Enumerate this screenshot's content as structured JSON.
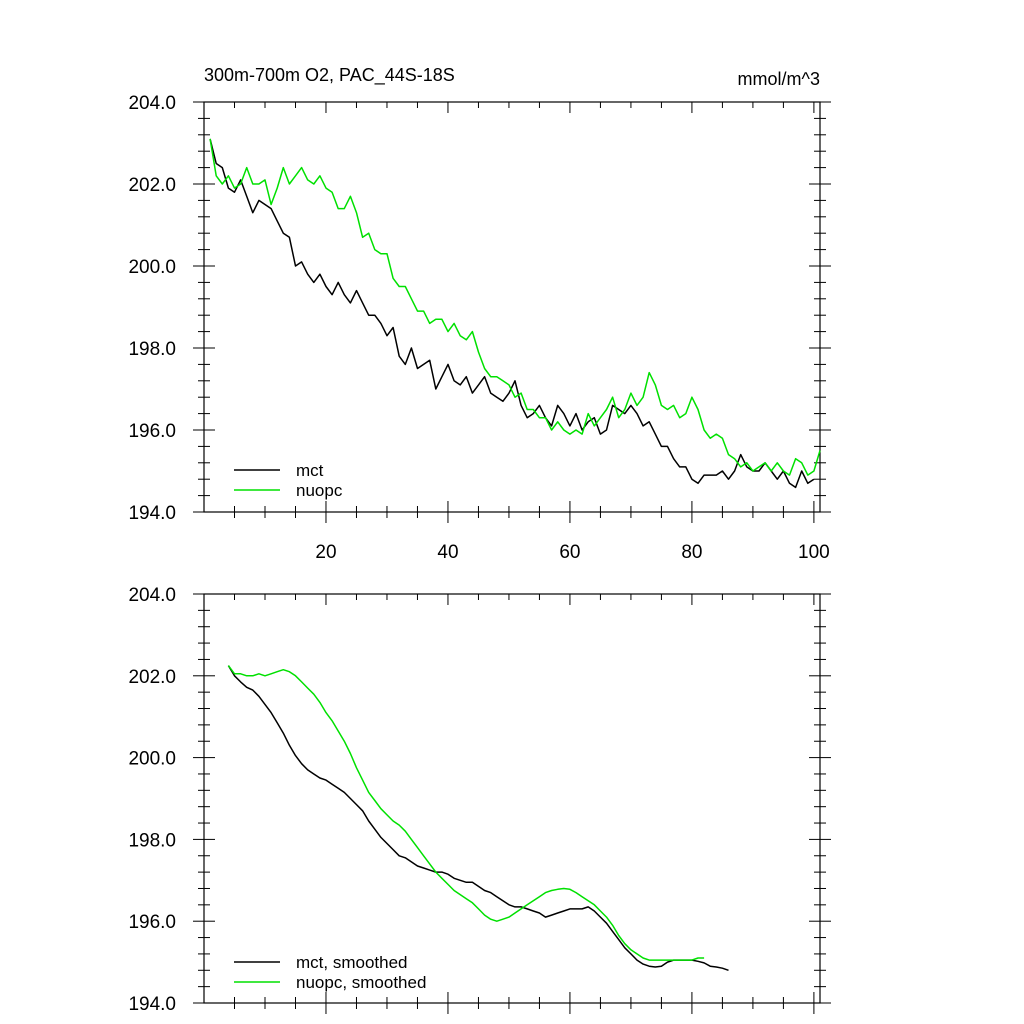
{
  "chart_data": [
    {
      "type": "line",
      "title": "300m-700m O2, PAC_44S-18S",
      "units": "mmol/m^3",
      "xlabel": "",
      "ylabel": "",
      "xlim": [
        0,
        101
      ],
      "ylim": [
        194.0,
        204.0
      ],
      "xticks": [
        20,
        40,
        60,
        80,
        100
      ],
      "yticks": [
        194.0,
        196.0,
        198.0,
        200.0,
        202.0,
        204.0
      ],
      "xtick_labels": [
        "20",
        "40",
        "60",
        "80",
        "100"
      ],
      "ytick_labels": [
        "194.0",
        "196.0",
        "198.0",
        "200.0",
        "202.0",
        "204.0"
      ],
      "legend": "bottom-left",
      "x_start": 1,
      "series": [
        {
          "name": "mct",
          "color": "#000000",
          "values": [
            203.1,
            202.5,
            202.4,
            201.9,
            201.8,
            202.1,
            201.7,
            201.3,
            201.6,
            201.5,
            201.4,
            201.1,
            200.8,
            200.7,
            200.0,
            200.1,
            199.8,
            199.6,
            199.8,
            199.5,
            199.3,
            199.6,
            199.3,
            199.1,
            199.4,
            199.1,
            198.8,
            198.8,
            198.6,
            198.3,
            198.5,
            197.8,
            197.6,
            198.0,
            197.5,
            197.6,
            197.7,
            197.0,
            197.3,
            197.6,
            197.2,
            197.1,
            197.3,
            196.9,
            197.1,
            197.3,
            196.9,
            196.8,
            196.7,
            196.9,
            197.2,
            196.6,
            196.3,
            196.4,
            196.6,
            196.3,
            196.1,
            196.6,
            196.4,
            196.1,
            196.4,
            196.0,
            196.2,
            196.3,
            195.9,
            196.0,
            196.6,
            196.5,
            196.4,
            196.6,
            196.4,
            196.1,
            196.2,
            195.9,
            195.6,
            195.6,
            195.3,
            195.1,
            195.1,
            194.8,
            194.7,
            194.9,
            194.9,
            194.9,
            195.0,
            194.8,
            195.0,
            195.4,
            195.1,
            195.0,
            195.0,
            195.2,
            195.0,
            194.8,
            195.0,
            194.7,
            194.6,
            195.0,
            194.7,
            194.8
          ]
        },
        {
          "name": "nuopc",
          "color": "#00e000",
          "values": [
            203.1,
            202.2,
            202.0,
            202.2,
            201.9,
            202.0,
            202.4,
            202.0,
            202.0,
            202.1,
            201.5,
            201.9,
            202.4,
            202.0,
            202.2,
            202.4,
            202.1,
            202.0,
            202.2,
            201.9,
            201.8,
            201.4,
            201.4,
            201.7,
            201.3,
            200.7,
            200.8,
            200.4,
            200.3,
            200.3,
            199.7,
            199.5,
            199.5,
            199.2,
            198.9,
            198.9,
            198.6,
            198.7,
            198.7,
            198.4,
            198.6,
            198.3,
            198.2,
            198.4,
            197.9,
            197.5,
            197.3,
            197.3,
            197.2,
            197.1,
            196.8,
            196.9,
            196.5,
            196.5,
            196.3,
            196.3,
            196.0,
            196.2,
            196.0,
            195.9,
            196.0,
            195.9,
            196.4,
            196.1,
            196.3,
            196.5,
            196.8,
            196.3,
            196.5,
            196.9,
            196.6,
            196.8,
            197.4,
            197.1,
            196.6,
            196.5,
            196.6,
            196.3,
            196.4,
            196.8,
            196.5,
            196.0,
            195.8,
            195.9,
            195.8,
            195.4,
            195.3,
            195.1,
            195.2,
            195.0,
            195.1,
            195.2,
            195.0,
            195.2,
            195.0,
            194.9,
            195.3,
            195.2,
            194.9,
            195.0,
            195.5
          ]
        }
      ]
    },
    {
      "type": "line",
      "title": "",
      "xlabel": "",
      "ylabel": "",
      "xlim": [
        0,
        101
      ],
      "ylim": [
        194.0,
        204.0
      ],
      "xticks": [
        20,
        40,
        60,
        80,
        100
      ],
      "yticks": [
        194.0,
        196.0,
        198.0,
        200.0,
        202.0,
        204.0
      ],
      "xtick_labels": [],
      "ytick_labels": [
        "194.0",
        "196.0",
        "198.0",
        "200.0",
        "202.0",
        "204.0"
      ],
      "legend": "bottom-left",
      "x_start": 4,
      "series": [
        {
          "name": "mct, smoothed",
          "color": "#000000",
          "values": [
            202.25,
            202.0,
            201.85,
            201.72,
            201.65,
            201.5,
            201.3,
            201.1,
            200.85,
            200.6,
            200.3,
            200.05,
            199.85,
            199.7,
            199.6,
            199.5,
            199.45,
            199.35,
            199.25,
            199.15,
            199.0,
            198.85,
            198.7,
            198.45,
            198.25,
            198.05,
            197.9,
            197.75,
            197.6,
            197.55,
            197.45,
            197.35,
            197.3,
            197.25,
            197.2,
            197.2,
            197.15,
            197.05,
            197.0,
            196.95,
            196.95,
            196.85,
            196.75,
            196.7,
            196.6,
            196.5,
            196.4,
            196.35,
            196.35,
            196.3,
            196.25,
            196.2,
            196.1,
            196.15,
            196.2,
            196.25,
            196.3,
            196.3,
            196.3,
            196.35,
            196.25,
            196.1,
            195.95,
            195.75,
            195.55,
            195.35,
            195.2,
            195.05,
            194.95,
            194.9,
            194.88,
            194.9,
            195.0,
            195.05,
            195.05,
            195.05,
            195.05,
            195.02,
            194.98,
            194.9,
            194.88,
            194.85,
            194.8
          ]
        },
        {
          "name": "nuopc, smoothed",
          "color": "#00e000",
          "values": [
            202.25,
            202.05,
            202.05,
            202.0,
            202.0,
            202.05,
            202.0,
            202.05,
            202.1,
            202.15,
            202.1,
            202.0,
            201.85,
            201.7,
            201.55,
            201.35,
            201.1,
            200.9,
            200.65,
            200.4,
            200.1,
            199.75,
            199.45,
            199.15,
            198.95,
            198.75,
            198.6,
            198.45,
            198.35,
            198.2,
            198.0,
            197.8,
            197.6,
            197.4,
            197.2,
            197.05,
            196.9,
            196.75,
            196.65,
            196.55,
            196.45,
            196.3,
            196.15,
            196.05,
            196.0,
            196.05,
            196.1,
            196.2,
            196.3,
            196.4,
            196.5,
            196.6,
            196.7,
            196.75,
            196.78,
            196.8,
            196.78,
            196.7,
            196.6,
            196.5,
            196.4,
            196.25,
            196.1,
            195.9,
            195.65,
            195.45,
            195.3,
            195.2,
            195.1,
            195.05,
            195.05,
            195.05,
            195.05,
            195.05,
            195.05,
            195.05,
            195.05,
            195.1,
            195.1
          ]
        }
      ]
    }
  ]
}
